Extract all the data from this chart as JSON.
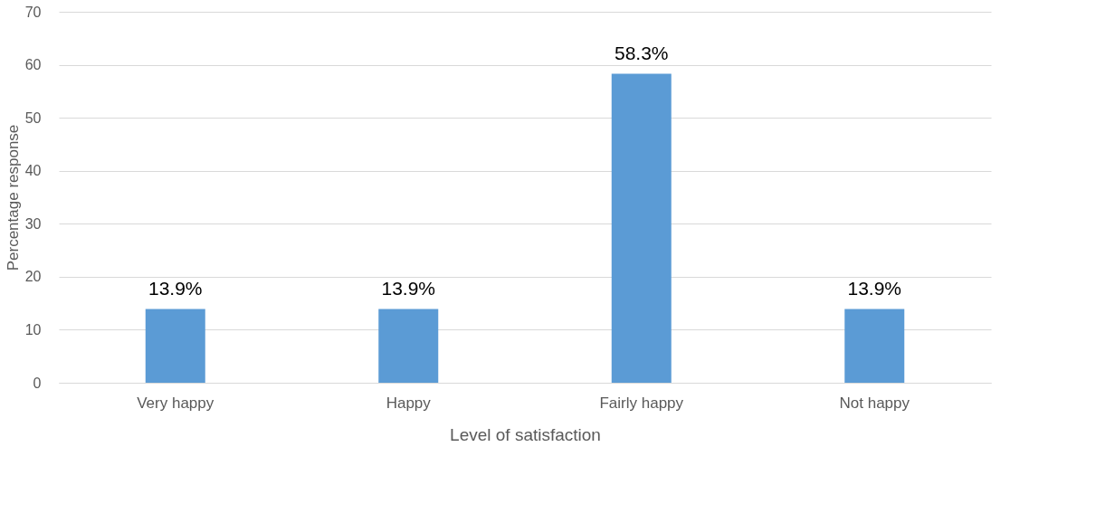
{
  "chart_data": {
    "type": "bar",
    "categories": [
      "Very happy",
      "Happy",
      "Fairly happy",
      "Not happy"
    ],
    "values": [
      13.9,
      13.9,
      58.3,
      13.9
    ],
    "value_labels": [
      "13.9%",
      "13.9%",
      "58.3%",
      "13.9%"
    ],
    "color": "#5b9bd5",
    "xlabel": "Level of satisfaction",
    "ylabel": "Percentage response",
    "ylim": [
      0,
      70
    ],
    "yticks": [
      0,
      10,
      20,
      30,
      40,
      50,
      60,
      70
    ],
    "grid": "y"
  }
}
